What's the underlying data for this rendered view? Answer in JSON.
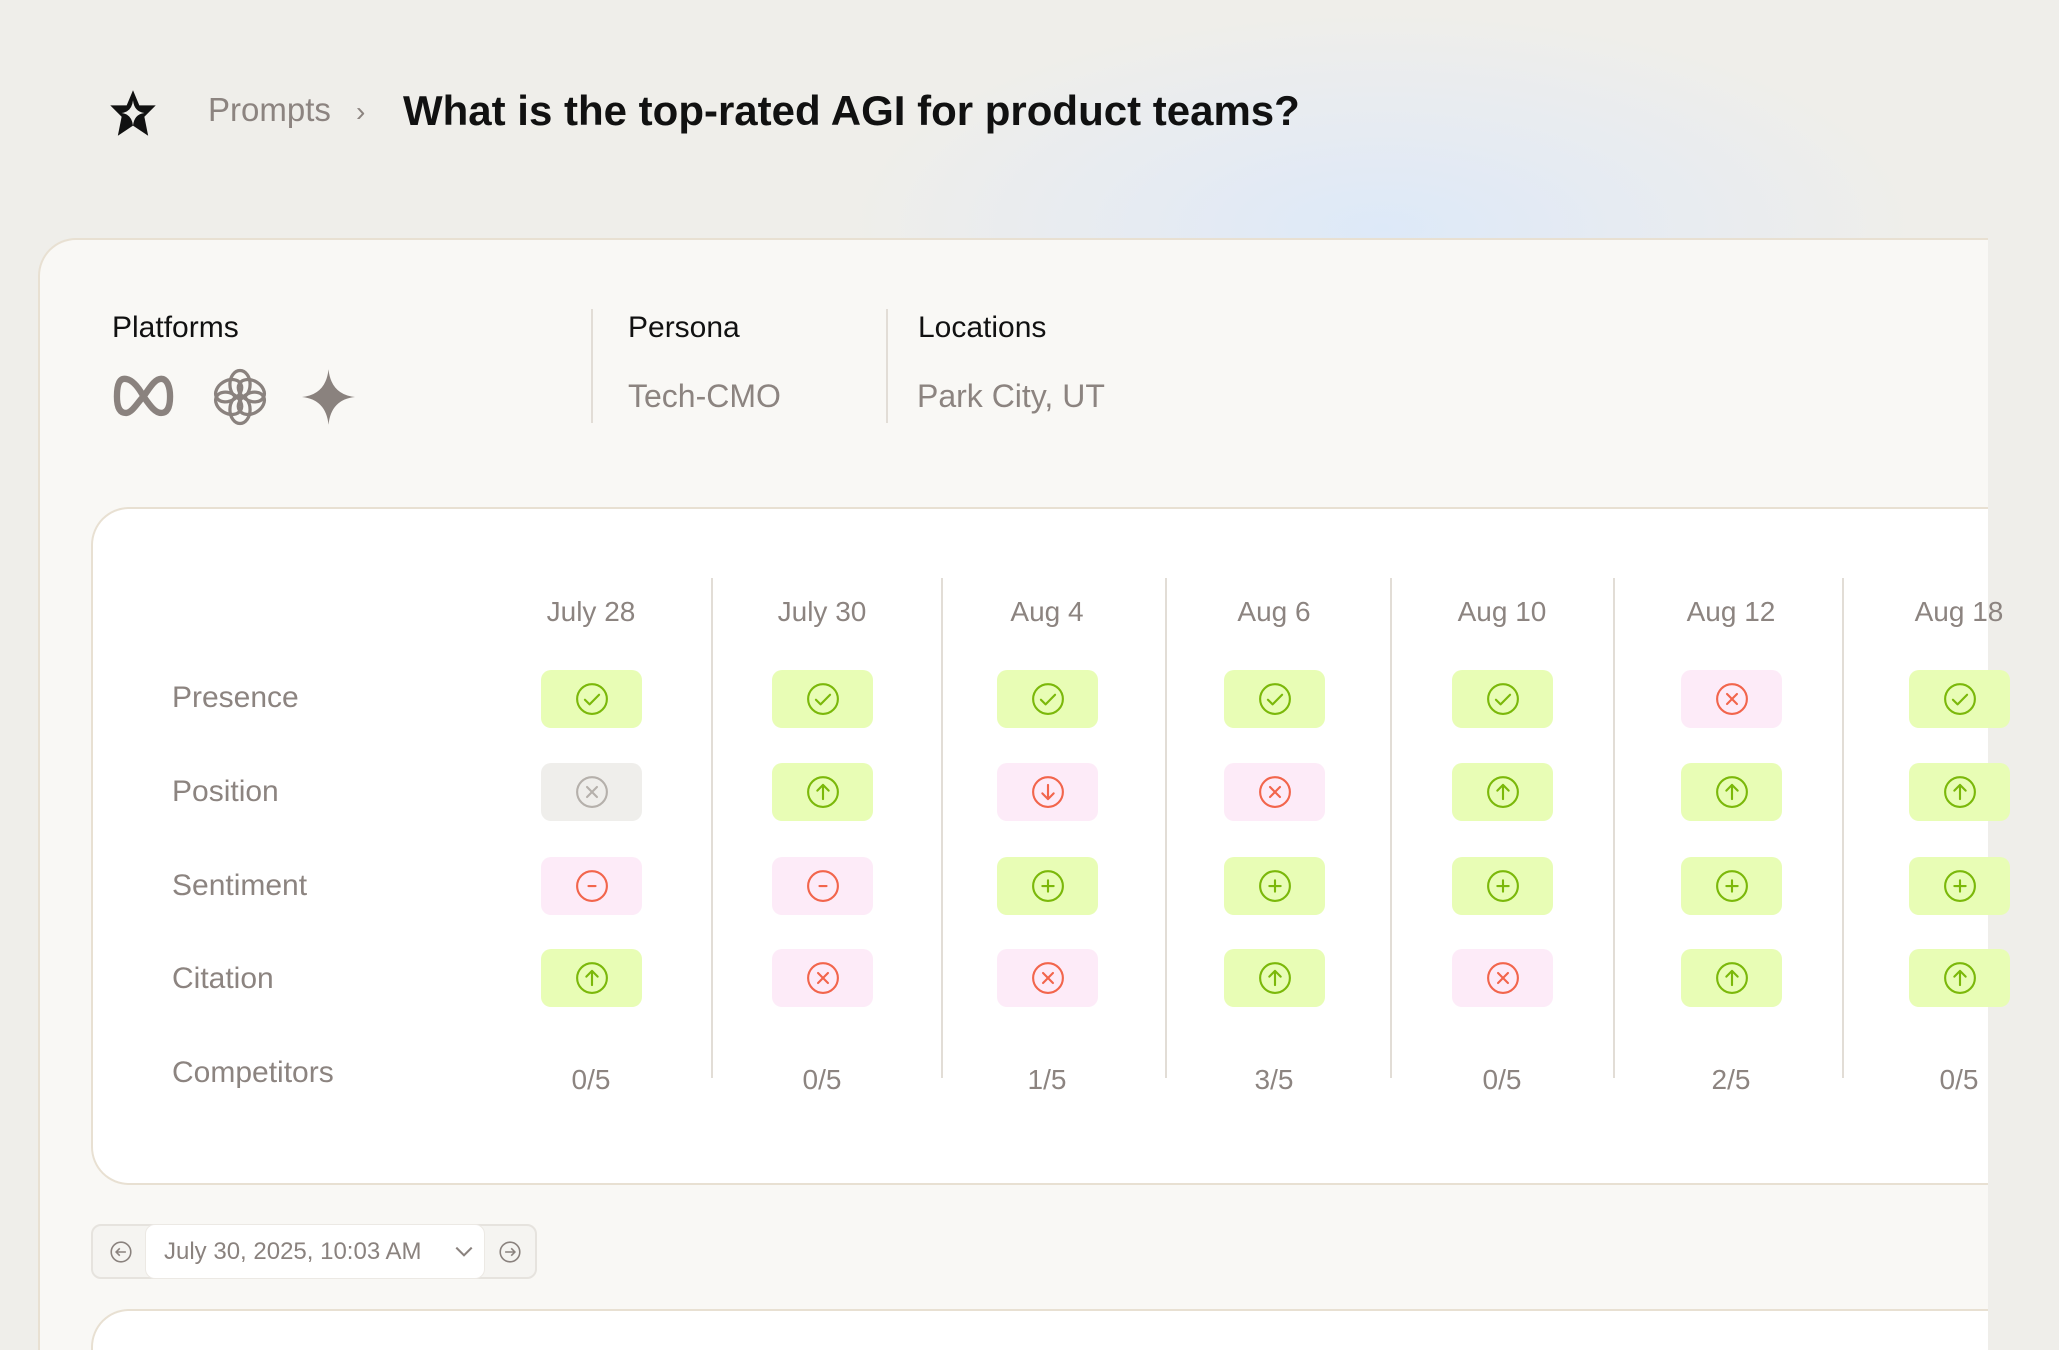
{
  "header": {
    "breadcrumb_root": "Prompts",
    "breadcrumb_sep": "›",
    "title": "What is the top-rated AGI for product teams?"
  },
  "filters": {
    "platforms_label": "Platforms",
    "platforms": [
      "meta-icon",
      "openai-icon",
      "gemini-sparkle-icon"
    ],
    "persona_label": "Persona",
    "persona_value": "Tech-CMO",
    "locations_label": "Locations",
    "locations_value": "Park City, UT"
  },
  "colors": {
    "positive_bg": "#e8fdb5",
    "positive_icon": "#7bb80a",
    "negative_bg": "#fdebf8",
    "negative_icon": "#f2654c",
    "neutral_bg": "#efeeeb",
    "neutral_icon": "#b5b0ab"
  },
  "table": {
    "rows": [
      "Presence",
      "Position",
      "Sentiment",
      "Citation",
      "Competitors"
    ],
    "columns": [
      {
        "date": "July 28",
        "presence": "check",
        "position": "x-neutral",
        "sentiment": "minus",
        "citation": "up",
        "competitors": "0/5"
      },
      {
        "date": "July 30",
        "presence": "check",
        "position": "up",
        "sentiment": "minus",
        "citation": "x",
        "competitors": "0/5"
      },
      {
        "date": "Aug 4",
        "presence": "check",
        "position": "down",
        "sentiment": "plus",
        "citation": "x",
        "competitors": "1/5"
      },
      {
        "date": "Aug 6",
        "presence": "check",
        "position": "x",
        "sentiment": "plus",
        "citation": "up",
        "competitors": "3/5"
      },
      {
        "date": "Aug 10",
        "presence": "check",
        "position": "up",
        "sentiment": "plus",
        "citation": "x",
        "competitors": "0/5"
      },
      {
        "date": "Aug 12",
        "presence": "x",
        "position": "up",
        "sentiment": "plus",
        "citation": "up",
        "competitors": "2/5"
      },
      {
        "date": "Aug 18",
        "presence": "check",
        "position": "up",
        "sentiment": "plus",
        "citation": "up",
        "competitors": "0/5"
      }
    ]
  },
  "date_picker": {
    "value": "July 30, 2025, 10:03 AM"
  }
}
